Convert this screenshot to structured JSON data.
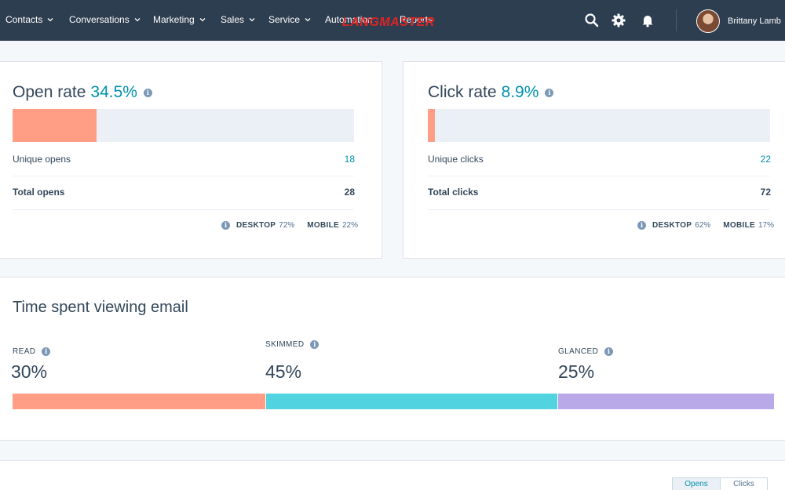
{
  "nav": {
    "items": [
      {
        "label": "Contacts"
      },
      {
        "label": "Conversations"
      },
      {
        "label": "Marketing"
      },
      {
        "label": "Sales"
      },
      {
        "label": "Service"
      },
      {
        "label": "Automation"
      },
      {
        "label": "Reports"
      }
    ],
    "watermark": "LANGMASTER",
    "icons": [
      "search-icon",
      "gear-icon",
      "bell-icon"
    ],
    "user_name": "Brittany Lamb"
  },
  "open_rate": {
    "title": "Open rate",
    "value": "34.5%",
    "bar_fraction": 0.245,
    "rows": [
      {
        "label": "Unique opens",
        "value": "18"
      },
      {
        "label": "Total opens",
        "value": "28"
      }
    ],
    "devices": {
      "desktop_label": "DESKTOP",
      "desktop_value": "72%",
      "mobile_label": "MOBILE",
      "mobile_value": "22%"
    }
  },
  "click_rate": {
    "title": "Click rate",
    "value": "8.9%",
    "bar_fraction": 0.02,
    "rows": [
      {
        "label": "Unique clicks",
        "value": "22"
      },
      {
        "label": "Total clicks",
        "value": "72"
      }
    ],
    "devices": {
      "desktop_label": "DESKTOP",
      "desktop_value": "62%",
      "mobile_label": "MOBILE",
      "mobile_value": "17%"
    }
  },
  "time_spent": {
    "title": "Time spent viewing email",
    "segments": [
      {
        "label": "READ",
        "value": "30%",
        "color": "#ff9d85"
      },
      {
        "label": "SKIMMED",
        "value": "45%",
        "color": "#51d3e0"
      },
      {
        "label": "GLANCED",
        "value": "25%",
        "color": "#b9a9e8"
      }
    ]
  },
  "bottom": {
    "toggles": [
      "Opens",
      "Clicks"
    ]
  },
  "colors": {
    "nav_bg": "#2d3e50",
    "accent": "#0091ae",
    "bar_fill": "#ff9d85",
    "bar_track": "#eaf0f6"
  }
}
